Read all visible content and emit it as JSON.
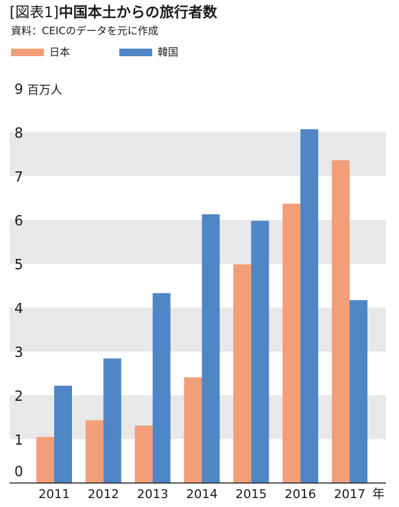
{
  "header": {
    "figure_label": "[図表1]",
    "title": "中国本土からの旅行者数",
    "subtitle": "資料：CEICのデータを元に作成"
  },
  "colors": {
    "japan": "#f29e78",
    "korea": "#4f86c6",
    "band": "#e8e8ea",
    "axis": "#222222"
  },
  "chart_data": {
    "type": "bar",
    "title": "中国本土からの旅行者数",
    "categories": [
      "2011",
      "2012",
      "2013",
      "2014",
      "2015",
      "2016",
      "2017"
    ],
    "series": [
      {
        "name": "日本",
        "values": [
          1.05,
          1.43,
          1.31,
          2.41,
          4.99,
          6.37,
          7.36
        ]
      },
      {
        "name": "韓国",
        "values": [
          2.22,
          2.84,
          4.33,
          6.13,
          5.98,
          8.07,
          4.17
        ]
      }
    ],
    "ylim": [
      0,
      9
    ],
    "yticks": [
      "0",
      "1",
      "2",
      "3",
      "4",
      "5",
      "6",
      "7",
      "8",
      "9"
    ],
    "y_unit": "百万人",
    "x_unit": "年",
    "grid": "alternating horizontal bands",
    "legend_position": "top-left"
  }
}
